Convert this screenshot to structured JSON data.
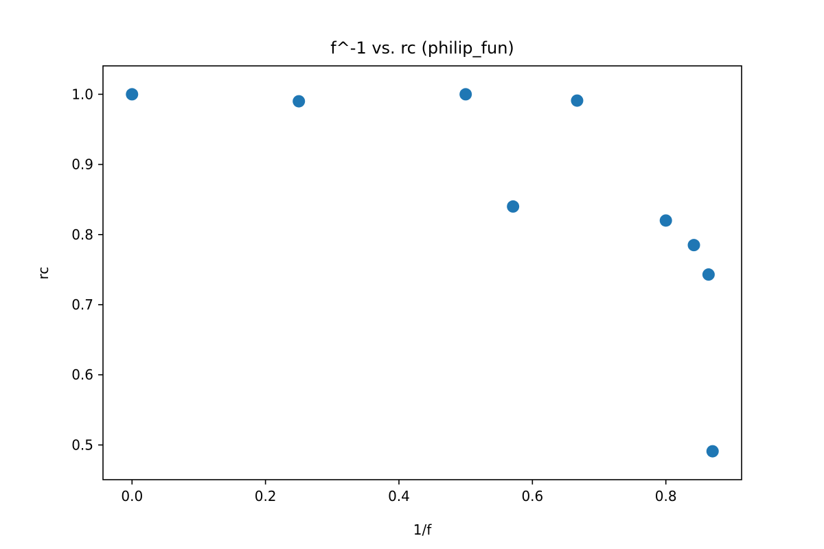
{
  "chart_data": {
    "type": "scatter",
    "title": "f^-1 vs. rc (philip_fun)",
    "xlabel": "1/f",
    "ylabel": "rc",
    "xlim": [
      -0.0435,
      0.9135
    ],
    "ylim": [
      0.4505,
      1.0405
    ],
    "xticks": [
      0.0,
      0.2,
      0.4,
      0.6,
      0.8
    ],
    "xtick_labels": [
      "0.0",
      "0.2",
      "0.4",
      "0.6",
      "0.8"
    ],
    "yticks": [
      0.5,
      0.6,
      0.7,
      0.8,
      0.9,
      1.0
    ],
    "ytick_labels": [
      "0.5",
      "0.6",
      "0.7",
      "0.8",
      "0.9",
      "1.0"
    ],
    "grid": false,
    "color": "#1f77b4",
    "points": [
      {
        "x": 0.0,
        "y": 1.0
      },
      {
        "x": 0.25,
        "y": 0.99
      },
      {
        "x": 0.5,
        "y": 1.0
      },
      {
        "x": 0.571,
        "y": 0.84
      },
      {
        "x": 0.667,
        "y": 0.991
      },
      {
        "x": 0.8,
        "y": 0.82
      },
      {
        "x": 0.842,
        "y": 0.785
      },
      {
        "x": 0.864,
        "y": 0.743
      },
      {
        "x": 0.87,
        "y": 0.491
      }
    ]
  }
}
